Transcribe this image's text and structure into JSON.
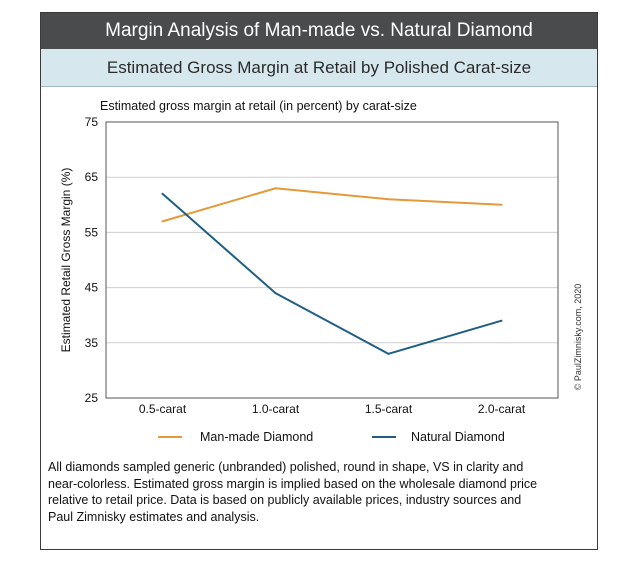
{
  "header": {
    "title": "Margin Analysis of Man-made vs. Natural Diamond",
    "subtitle": "Estimated Gross Margin at Retail by Polished Carat-size"
  },
  "chart_data": {
    "type": "line",
    "title": "Estimated gross margin at retail (in percent) by carat-size",
    "xlabel": "",
    "ylabel": "Estimated Retail Gross Margin (%)",
    "categories": [
      "0.5-carat",
      "1.0-carat",
      "1.5-carat",
      "2.0-carat"
    ],
    "ylim": [
      25,
      75
    ],
    "yticks": [
      25,
      35,
      45,
      55,
      65,
      75
    ],
    "grid": true,
    "legend_position": "bottom",
    "series": [
      {
        "name": "Man-made Diamond",
        "color": "#e39a3b",
        "values": [
          57,
          63,
          61,
          60
        ]
      },
      {
        "name": "Natural Diamond",
        "color": "#1f5f84",
        "values": [
          62,
          44,
          33,
          39
        ]
      }
    ]
  },
  "copyright": "© PaulZimnisky.com, 2020",
  "footnote": "All diamonds sampled generic (unbranded) polished, round in shape, VS in clarity and near-colorless. Estimated gross margin is implied based on the wholesale diamond price relative to retail price. Data is based on publicly available prices, industry sources and Paul Zimnisky estimates and analysis.",
  "colors": {
    "title_bar": "#4a4b4d",
    "subtitle_bar": "#d6e8ee",
    "grid": "#cfcfcf"
  }
}
